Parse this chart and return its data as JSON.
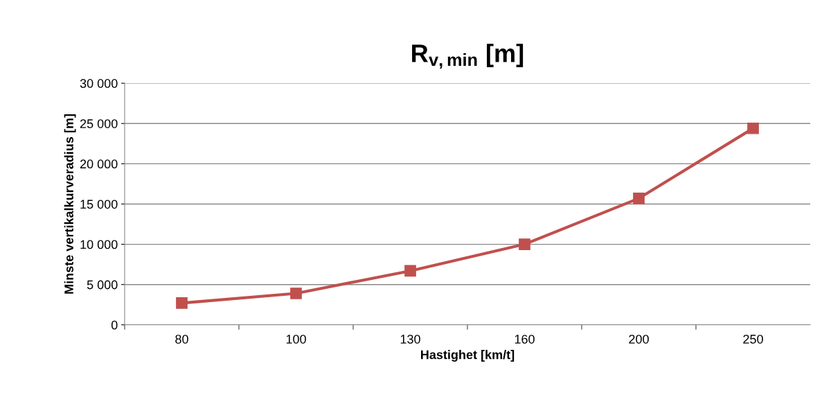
{
  "chart_data": {
    "type": "line",
    "title": "R$_{v,min}$ [m]",
    "xlabel": "Hastighet [km/t]",
    "ylabel": "Minste vertikalkurveradius [m]",
    "categories": [
      "80",
      "100",
      "130",
      "160",
      "200",
      "250"
    ],
    "series": [
      {
        "color": "#c0504d",
        "values": [
          2700,
          3900,
          6700,
          10000,
          15700,
          24400
        ]
      }
    ],
    "ylim": [
      0,
      30000
    ],
    "yticks": [
      {
        "value": 0,
        "label": "0"
      },
      {
        "value": 5000,
        "label": "5 000"
      },
      {
        "value": 10000,
        "label": "10 000"
      },
      {
        "value": 15000,
        "label": "15 000"
      },
      {
        "value": 20000,
        "label": "20 000"
      },
      {
        "value": 25000,
        "label": "25 000"
      },
      {
        "value": 30000,
        "label": "30 000"
      }
    ],
    "grid": "y",
    "marker": "square",
    "line_style": "solid"
  }
}
